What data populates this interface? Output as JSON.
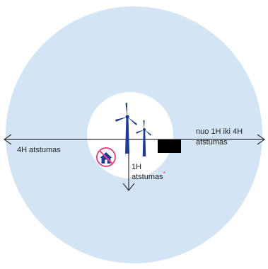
{
  "labels": {
    "left_distance": "4H atstumas",
    "right_line1": "nuo 1H iki 4H",
    "right_line2": "atstumas",
    "bottom_line1": "1H",
    "bottom_line2": "atstumas",
    "bottom_marker": "*"
  },
  "icons": {
    "turbines": "wind-turbine-icon",
    "no_house": "no-house-icon",
    "redaction": "black-box"
  },
  "colors": {
    "outer_zone": "#d3e4f5",
    "inner_zone": "#ffffff",
    "turbine": "#1f3a93",
    "prohibition": "#e04a8a",
    "arrows": "#333333"
  }
}
